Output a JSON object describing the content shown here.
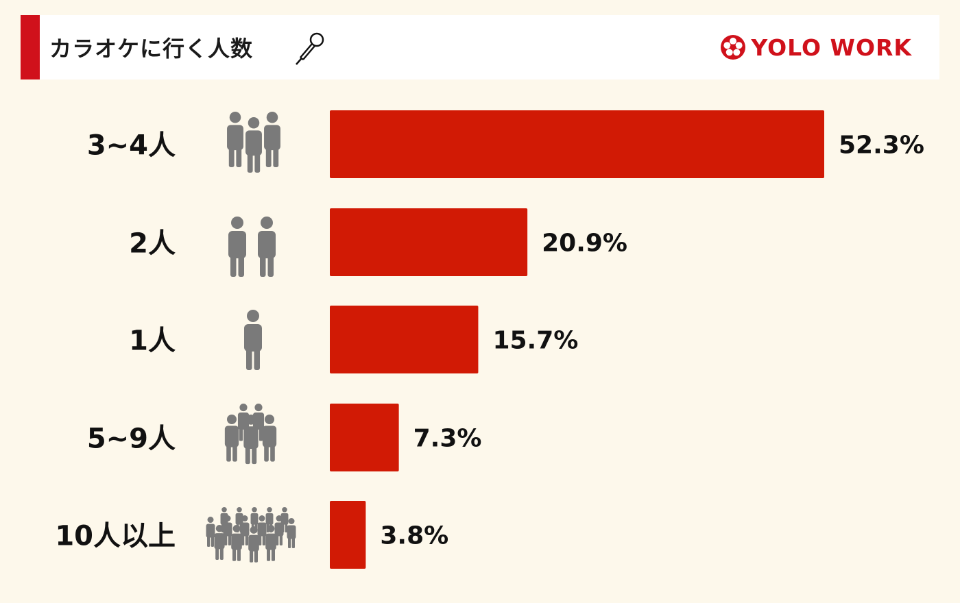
{
  "header": {
    "title": "カラオケに行く人数",
    "icon": "microphone-icon",
    "logo_text": "YOLO WORK",
    "logo_icon": "flower-crest-icon"
  },
  "colors": {
    "background": "#fdf8eb",
    "bar": "#d11a05",
    "accent": "#d0111b",
    "people_icon": "#7a7a7a"
  },
  "chart_data": {
    "type": "bar",
    "orientation": "horizontal",
    "categories": [
      "3~4人",
      "2人",
      "1人",
      "5~9人",
      "10人以上"
    ],
    "values": [
      52.3,
      20.9,
      15.7,
      7.3,
      3.8
    ],
    "value_labels": [
      "52.3%",
      "20.9%",
      "15.7%",
      "7.3%",
      "3.8%"
    ],
    "people_icons": [
      "three-people-icon",
      "two-people-icon",
      "one-person-icon",
      "group-icon",
      "crowd-icon"
    ],
    "people_counts": [
      3,
      2,
      1,
      5,
      15
    ],
    "title": "カラオケに行く人数",
    "xlabel": "",
    "ylabel": "",
    "xlim": [
      0,
      52.3
    ],
    "grid": false,
    "legend": "none"
  }
}
